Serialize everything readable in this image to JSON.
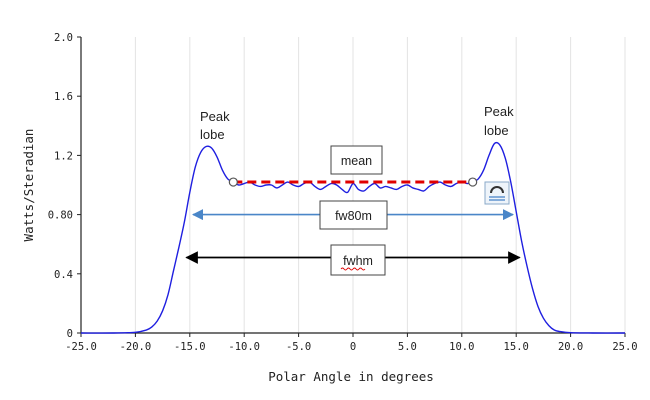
{
  "chart_data": {
    "type": "line",
    "title": "",
    "xlabel": "Polar Angle in degrees",
    "ylabel": "Watts/Steradian",
    "xlim": [
      -25,
      25
    ],
    "ylim": [
      0,
      2.0
    ],
    "x_ticks": [
      -25,
      -20,
      -15,
      -10,
      -5,
      0,
      5,
      10,
      15,
      20,
      25
    ],
    "x_tick_labels": [
      "-25.0",
      "-20.0",
      "-15.0",
      "-10.0",
      "-5.0",
      "0",
      "5.0",
      "10.0",
      "15.0",
      "20.0",
      "25.0"
    ],
    "y_ticks": [
      0,
      0.4,
      0.8,
      1.2,
      1.6,
      2.0
    ],
    "y_tick_labels": [
      "0",
      "0.4",
      "0.80",
      "1.2",
      "1.6",
      "2.0"
    ],
    "grid": "vertical",
    "line_color": "#1f1fe0",
    "series": [
      {
        "x": [
          -25,
          -22,
          -20,
          -19,
          -18.5,
          -18,
          -17.5,
          -17,
          -16.5,
          -16,
          -15.5,
          -15,
          -14.5,
          -14,
          -13.5,
          -13,
          -12.5,
          -12,
          -11.5,
          -11,
          -10.5,
          -10,
          -9.5,
          -9,
          -8.5,
          -8,
          -7.5,
          -7,
          -6.5,
          -6,
          -5.5,
          -5,
          -4.5,
          -4,
          -3.5,
          -3,
          -2.5,
          -2,
          -1.5,
          -1,
          -0.5,
          0,
          0.5,
          1,
          1.5,
          2,
          2.5,
          3,
          3.5,
          4,
          4.5,
          5,
          5.5,
          6,
          6.5,
          7,
          7.5,
          8,
          8.5,
          9,
          9.5,
          10,
          10.5,
          11,
          11.5,
          12,
          12.5,
          13,
          13.5,
          14,
          14.5,
          15,
          15.5,
          16,
          16.5,
          17,
          17.5,
          18,
          18.5,
          19,
          20,
          22,
          25
        ],
        "y": [
          0,
          0,
          0.005,
          0.02,
          0.04,
          0.08,
          0.15,
          0.26,
          0.42,
          0.58,
          0.75,
          0.95,
          1.12,
          1.22,
          1.26,
          1.25,
          1.19,
          1.1,
          1.04,
          1.02,
          1.0,
          1.01,
          1.02,
          1.0,
          0.99,
          1.0,
          1.0,
          0.98,
          1.0,
          1.02,
          1.0,
          0.99,
          1.01,
          1.02,
          0.99,
          0.97,
          0.99,
          1.01,
          1.0,
          0.97,
          0.95,
          1.01,
          0.97,
          0.96,
          0.99,
          1.01,
          0.98,
          0.99,
          0.98,
          0.97,
          0.99,
          1.0,
          0.98,
          0.97,
          0.96,
          0.99,
          1.01,
          1.02,
          1.0,
          0.99,
          1.01,
          1.02,
          1.01,
          1.02,
          1.04,
          1.1,
          1.2,
          1.28,
          1.27,
          1.18,
          1.02,
          0.82,
          0.62,
          0.45,
          0.3,
          0.18,
          0.1,
          0.05,
          0.02,
          0.01,
          0.002,
          0,
          0
        ]
      }
    ],
    "annotations": {
      "peak_left": [
        "Peak",
        "lobe"
      ],
      "peak_right": [
        "Peak",
        "lobe"
      ],
      "mean": {
        "label": "mean",
        "x_from": -11,
        "x_to": 11,
        "y": 1.02,
        "color": "#e00000"
      },
      "fw80m": {
        "label": "fw80m",
        "x_from": -14.7,
        "x_to": 14.7,
        "y": 0.8,
        "color": "#4a86c8"
      },
      "fwhm": {
        "label": "fwhm",
        "x_from": -15.3,
        "x_to": 15.3,
        "y": 0.51,
        "color": "#000000"
      }
    }
  }
}
